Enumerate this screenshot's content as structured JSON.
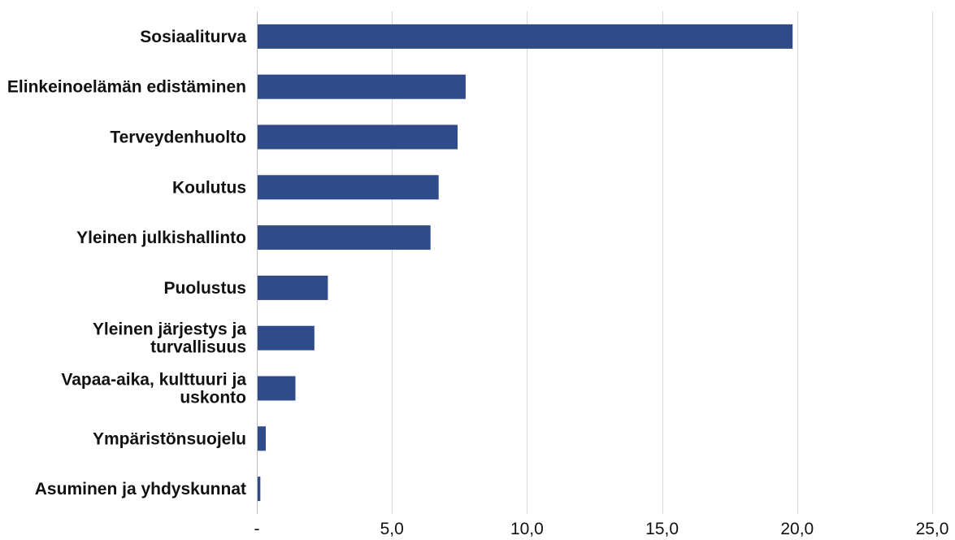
{
  "chart_data": {
    "type": "bar",
    "orientation": "horizontal",
    "categories": [
      [
        "Sosiaaliturva"
      ],
      [
        "Elinkeinoelämän edistäminen"
      ],
      [
        "Terveydenhuolto"
      ],
      [
        "Koulutus"
      ],
      [
        "Yleinen julkishallinto"
      ],
      [
        "Puolustus"
      ],
      [
        "Yleinen järjestys ja",
        "turvallisuus"
      ],
      [
        "Vapaa-aika, kulttuuri ja",
        "uskonto"
      ],
      [
        "Ympäristönsuojelu"
      ],
      [
        "Asuminen ja yhdyskunnat"
      ]
    ],
    "values": [
      19.8,
      7.7,
      7.4,
      6.7,
      6.4,
      2.6,
      2.1,
      1.4,
      0.3,
      0.1
    ],
    "xlim": [
      0,
      25
    ],
    "xticks": [
      0,
      5,
      10,
      15,
      20,
      25
    ],
    "xtick_labels": [
      "-",
      "5,0",
      "10,0",
      "15,0",
      "20,0",
      "25,0"
    ],
    "grid": "vertical",
    "bar_color": "#2f4b8a",
    "title": "",
    "xlabel": "",
    "ylabel": ""
  }
}
